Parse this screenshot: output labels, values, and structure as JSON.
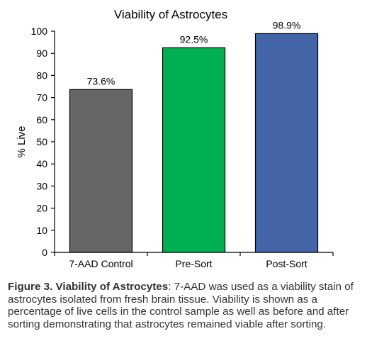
{
  "chart_data": {
    "type": "bar",
    "title": "Viability of Astrocytes",
    "xlabel": "",
    "ylabel": "% Live",
    "ylim": [
      0,
      100
    ],
    "yticks": [
      0,
      10,
      20,
      30,
      40,
      50,
      60,
      70,
      80,
      90,
      100
    ],
    "categories": [
      "7-AAD Control",
      "Pre-Sort",
      "Post-Sort"
    ],
    "values": [
      73.6,
      92.5,
      98.9
    ],
    "data_labels": [
      "73.6%",
      "92.5%",
      "98.9%"
    ],
    "colors": [
      "#666666",
      "#00b050",
      "#4466a8"
    ],
    "grid": false,
    "legend": "none"
  },
  "caption": {
    "lead": "Figure 3. Viability of Astrocytes",
    "body": ": 7-AAD was used as a viability stain of astrocytes isolated from fresh brain tissue. Viability is shown as a percentage of live cells in the control sample as well as before and after sorting demonstrating that astrocytes remained viable after sorting."
  }
}
